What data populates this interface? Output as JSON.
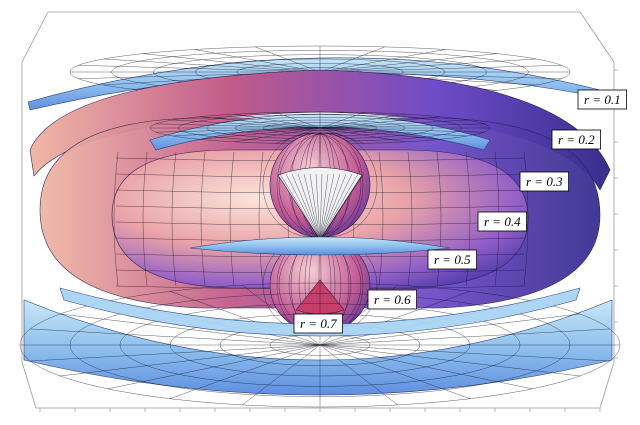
{
  "chart_data": {
    "type": "3d-surface",
    "series": [
      {
        "name": "r = 0.1",
        "r": 0.1
      },
      {
        "name": "r = 0.2",
        "r": 0.2
      },
      {
        "name": "r = 0.3",
        "r": 0.3
      },
      {
        "name": "r = 0.4",
        "r": 0.4
      },
      {
        "name": "r = 0.5",
        "r": 0.5
      },
      {
        "name": "r = 0.6",
        "r": 0.6
      },
      {
        "name": "r = 0.7",
        "r": 0.7
      }
    ],
    "title": "",
    "xlabel": "",
    "ylabel": "",
    "zlabel": "",
    "grid": false,
    "box": true,
    "colors": {
      "surface_light": "#a9d7f2",
      "surface_mid": "#7aa6e6",
      "surface_violet": "#6a4fc8",
      "surface_magenta": "#b8467f",
      "surface_peach": "#f5c9b5",
      "mesh": "#101020",
      "box": "#9a9a9a"
    }
  }
}
